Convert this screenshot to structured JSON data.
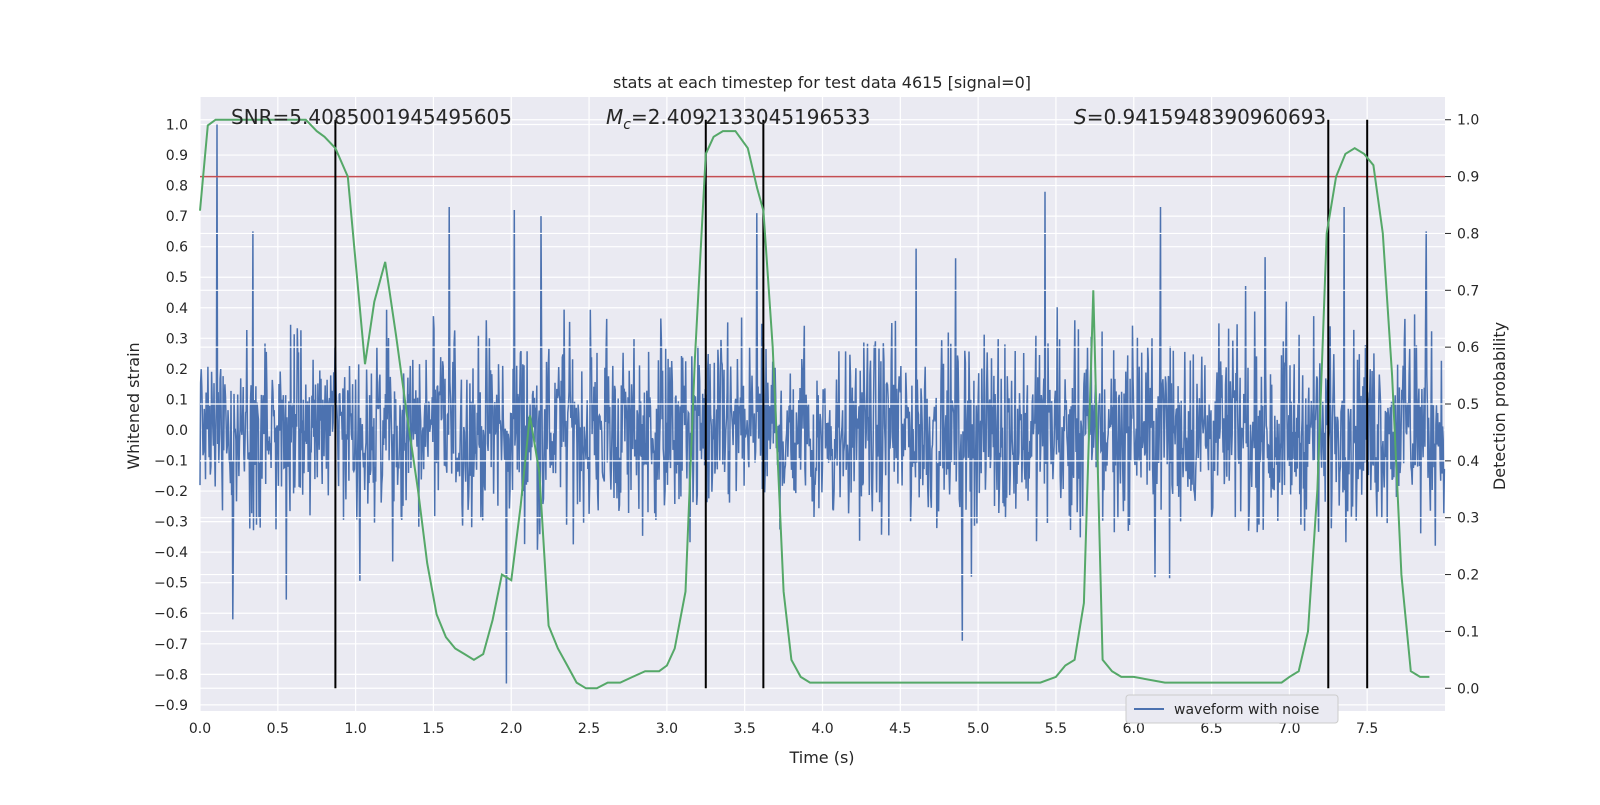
{
  "chart_data": {
    "type": "line",
    "title": "stats at each timestep for test data 4615 [signal=0]",
    "xlabel": "Time (s)",
    "ylabel_left": "Whitened strain",
    "ylabel_right": "Detection probability",
    "xlim": [
      0,
      8
    ],
    "ylim_left": [
      -0.92,
      1.09
    ],
    "ylim_right": [
      -0.04,
      1.04
    ],
    "x_ticks": [
      "0.0",
      "0.5",
      "1.0",
      "1.5",
      "2.0",
      "2.5",
      "3.0",
      "3.5",
      "4.0",
      "4.5",
      "5.0",
      "5.5",
      "6.0",
      "6.5",
      "7.0",
      "7.5"
    ],
    "y_ticks_left": [
      "1.0",
      "0.9",
      "0.8",
      "0.7",
      "0.6",
      "0.5",
      "0.4",
      "0.3",
      "0.2",
      "0.1",
      "0.0",
      "−0.1",
      "−0.2",
      "−0.3",
      "−0.4",
      "−0.5",
      "−0.6",
      "−0.7",
      "−0.8",
      "−0.9"
    ],
    "y_ticks_right": [
      "1.0",
      "0.9",
      "0.8",
      "0.7",
      "0.6",
      "0.5",
      "0.4",
      "0.3",
      "0.2",
      "0.1",
      "0.0"
    ],
    "annotations": {
      "snr": "SNR=5.4085001945495605",
      "mc_symbol": "M",
      "mc_sub": "c",
      "mc_value": "=2.4092133045196533",
      "s_symbol": "S",
      "s_value": "=0.9415948390960693"
    },
    "legend": {
      "label": "waveform with noise",
      "placement": "lower right"
    },
    "threshold_right_axis": 0.9,
    "vertical_lines_x": [
      0.87,
      3.25,
      3.62,
      7.25,
      7.5
    ],
    "waveform": {
      "name": "waveform with noise",
      "color": "#4c72b0",
      "sample_rate_hz": 256,
      "typical_envelope": 0.27,
      "peaks": [
        {
          "x": 0.11,
          "y": 1.0
        },
        {
          "x": 0.34,
          "y": 0.65
        },
        {
          "x": 1.6,
          "y": 0.73
        },
        {
          "x": 1.97,
          "y": -0.83
        },
        {
          "x": 2.02,
          "y": 0.72
        },
        {
          "x": 2.19,
          "y": 0.7
        },
        {
          "x": 3.58,
          "y": 0.71
        },
        {
          "x": 4.9,
          "y": -0.69
        },
        {
          "x": 5.43,
          "y": 0.78
        },
        {
          "x": 6.17,
          "y": 0.73
        },
        {
          "x": 7.35,
          "y": 0.73
        },
        {
          "x": 7.88,
          "y": 0.65
        }
      ]
    },
    "probability": {
      "color": "#55a868",
      "x": [
        0.0,
        0.05,
        0.1,
        0.2,
        0.3,
        0.4,
        0.5,
        0.6,
        0.68,
        0.75,
        0.8,
        0.87,
        0.95,
        1.0,
        1.06,
        1.12,
        1.19,
        1.26,
        1.33,
        1.4,
        1.46,
        1.52,
        1.58,
        1.64,
        1.7,
        1.76,
        1.82,
        1.88,
        1.94,
        2.0,
        2.06,
        2.12,
        2.18,
        2.24,
        2.3,
        2.36,
        2.42,
        2.48,
        2.55,
        2.62,
        2.7,
        2.78,
        2.86,
        2.95,
        3.0,
        3.05,
        3.12,
        3.18,
        3.25,
        3.3,
        3.36,
        3.44,
        3.52,
        3.58,
        3.62,
        3.68,
        3.75,
        3.8,
        3.86,
        3.92,
        4.0,
        4.2,
        4.4,
        4.6,
        4.8,
        5.0,
        5.2,
        5.4,
        5.5,
        5.56,
        5.62,
        5.68,
        5.74,
        5.8,
        5.86,
        5.92,
        6.0,
        6.2,
        6.4,
        6.6,
        6.8,
        6.95,
        7.0,
        7.06,
        7.12,
        7.18,
        7.24,
        7.3,
        7.36,
        7.42,
        7.48,
        7.54,
        7.6,
        7.66,
        7.72,
        7.78,
        7.84,
        7.9
      ],
      "y": [
        0.84,
        0.99,
        1.0,
        1.0,
        1.0,
        1.0,
        1.0,
        1.0,
        1.0,
        0.98,
        0.97,
        0.95,
        0.9,
        0.75,
        0.57,
        0.68,
        0.75,
        0.62,
        0.48,
        0.35,
        0.22,
        0.13,
        0.09,
        0.07,
        0.06,
        0.05,
        0.06,
        0.12,
        0.2,
        0.19,
        0.32,
        0.48,
        0.38,
        0.11,
        0.07,
        0.04,
        0.01,
        0.0,
        0.0,
        0.01,
        0.01,
        0.02,
        0.03,
        0.03,
        0.04,
        0.07,
        0.17,
        0.58,
        0.94,
        0.97,
        0.98,
        0.98,
        0.95,
        0.88,
        0.84,
        0.6,
        0.17,
        0.05,
        0.02,
        0.01,
        0.01,
        0.01,
        0.01,
        0.01,
        0.01,
        0.01,
        0.01,
        0.01,
        0.02,
        0.04,
        0.05,
        0.15,
        0.7,
        0.05,
        0.03,
        0.02,
        0.02,
        0.01,
        0.01,
        0.01,
        0.01,
        0.01,
        0.02,
        0.03,
        0.1,
        0.35,
        0.8,
        0.9,
        0.94,
        0.95,
        0.94,
        0.92,
        0.8,
        0.55,
        0.2,
        0.03,
        0.02,
        0.02
      ]
    }
  }
}
